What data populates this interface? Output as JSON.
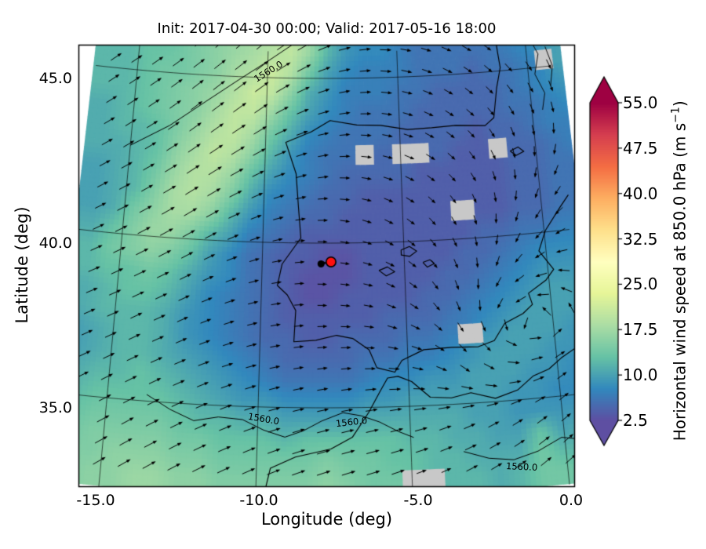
{
  "chart_data": {
    "type": "heatmap",
    "title": "Init: 2017-04-30 00:00; Valid: 2017-05-16 18:00",
    "xlabel": "Longitude (deg)",
    "ylabel": "Latitude (deg)",
    "x_ticks": [
      "-15.0",
      "-10.0",
      "-5.0",
      "0.0"
    ],
    "y_ticks": [
      "45.0",
      "40.0",
      "35.0"
    ],
    "xlim": [
      -16.4,
      1.0
    ],
    "ylim": [
      32.5,
      46.1
    ],
    "grid_lines": {
      "meridians": [
        -15,
        -10,
        -5,
        0
      ],
      "parallels": [
        35,
        40,
        45
      ]
    },
    "colorbar": {
      "label_prefix": "Horizontal wind speed at 850.0 hPa (m s",
      "label_sup": "−1",
      "label_suffix": ")",
      "tick_labels": [
        "2.5",
        "10.0",
        "17.5",
        "25.0",
        "32.5",
        "40.0",
        "47.5",
        "55.0"
      ],
      "tick_values": [
        2.5,
        10.0,
        17.5,
        25.0,
        32.5,
        40.0,
        47.5,
        55.0
      ],
      "vmin": 2.5,
      "vmax": 55.0,
      "cmap_colors": [
        "#5e4fa2",
        "#3288bd",
        "#66c2a5",
        "#abdda4",
        "#e6f598",
        "#ffffbf",
        "#fee08b",
        "#fdae61",
        "#f46d43",
        "#d53e4f",
        "#9e0142"
      ],
      "under_color": "#5e4fa2",
      "over_color": "#9e0142",
      "missing_color": "#c8c8c8"
    },
    "contour_label": "1560.0",
    "field": {
      "units": "m s-1",
      "lon0": -16.4,
      "dlon": 0.696,
      "lat0": 46.1,
      "dlat": -0.62,
      "values": [
        [
          12,
          12,
          13,
          13,
          14,
          15,
          16,
          17,
          18,
          19,
          20,
          17,
          12,
          9,
          8,
          8,
          7,
          6,
          6,
          6,
          6,
          6,
          7,
          8,
          9,
          10
        ],
        [
          12,
          12,
          13,
          14,
          14,
          15,
          16,
          18,
          19,
          21,
          19,
          14,
          10,
          8,
          7,
          7,
          7,
          6,
          6,
          6,
          5,
          6,
          6,
          7,
          null,
          10
        ],
        [
          12,
          12,
          13,
          14,
          15,
          16,
          17,
          19,
          21,
          20,
          16,
          11,
          9,
          7,
          7,
          7,
          6,
          6,
          5,
          5,
          5,
          5,
          6,
          7,
          8,
          9
        ],
        [
          11,
          12,
          13,
          14,
          15,
          16,
          18,
          20,
          20,
          17,
          13,
          10,
          8,
          7,
          6,
          6,
          6,
          5,
          5,
          5,
          5,
          5,
          6,
          6,
          7,
          8
        ],
        [
          11,
          12,
          12,
          13,
          15,
          17,
          19,
          20,
          18,
          14,
          11,
          8,
          7,
          6,
          6,
          6,
          5,
          5,
          5,
          5,
          4,
          5,
          5,
          6,
          7,
          7
        ],
        [
          11,
          11,
          12,
          13,
          16,
          18,
          20,
          19,
          16,
          12,
          9,
          7,
          6,
          6,
          null,
          5,
          null,
          null,
          5,
          4,
          4,
          null,
          5,
          5,
          6,
          7
        ],
        [
          10,
          11,
          12,
          14,
          17,
          19,
          19,
          17,
          13,
          10,
          8,
          7,
          6,
          5,
          5,
          5,
          5,
          4,
          4,
          4,
          4,
          4,
          5,
          5,
          6,
          6
        ],
        [
          10,
          11,
          12,
          15,
          18,
          19,
          18,
          15,
          11,
          8,
          7,
          6,
          5,
          5,
          4,
          4,
          4,
          4,
          4,
          4,
          4,
          4,
          5,
          5,
          6,
          6
        ],
        [
          10,
          11,
          14,
          16,
          18,
          18,
          16,
          12,
          9,
          7,
          6,
          5,
          5,
          4,
          4,
          4,
          4,
          4,
          4,
          null,
          4,
          4,
          5,
          5,
          6,
          6
        ],
        [
          11,
          13,
          15,
          17,
          17,
          15,
          12,
          10,
          7,
          6,
          5,
          4,
          4,
          4,
          4,
          4,
          4,
          4,
          4,
          4,
          5,
          5,
          6,
          6,
          7,
          7
        ],
        [
          12,
          14,
          15,
          16,
          15,
          13,
          10,
          8,
          6,
          5,
          4,
          4,
          3,
          3,
          4,
          4,
          4,
          4,
          4,
          5,
          5,
          6,
          7,
          8,
          8,
          8
        ],
        [
          12,
          13,
          13,
          14,
          13,
          11,
          9,
          8,
          6,
          5,
          4,
          3,
          3,
          3,
          4,
          4,
          4,
          4,
          5,
          5,
          6,
          7,
          8,
          9,
          9,
          9
        ],
        [
          11,
          12,
          13,
          13,
          12,
          10,
          8,
          7,
          6,
          5,
          4,
          3,
          3,
          4,
          4,
          4,
          4,
          5,
          5,
          6,
          7,
          8,
          9,
          10,
          10,
          9
        ],
        [
          11,
          12,
          12,
          12,
          11,
          9,
          8,
          7,
          6,
          5,
          4,
          4,
          4,
          4,
          4,
          5,
          5,
          5,
          6,
          7,
          8,
          9,
          10,
          10,
          10,
          9
        ],
        [
          10,
          11,
          12,
          12,
          11,
          9,
          8,
          7,
          6,
          5,
          5,
          4,
          4,
          5,
          5,
          5,
          6,
          6,
          7,
          null,
          9,
          10,
          10,
          10,
          9,
          9
        ],
        [
          10,
          11,
          12,
          12,
          11,
          10,
          9,
          8,
          7,
          6,
          5,
          5,
          5,
          5,
          6,
          6,
          7,
          7,
          8,
          9,
          10,
          10,
          10,
          9,
          9,
          8
        ],
        [
          11,
          12,
          12,
          13,
          12,
          11,
          10,
          9,
          8,
          7,
          6,
          6,
          6,
          6,
          7,
          8,
          8,
          9,
          9,
          10,
          10,
          10,
          9,
          9,
          8,
          8
        ],
        [
          12,
          13,
          13,
          13,
          13,
          12,
          11,
          10,
          9,
          9,
          8,
          8,
          8,
          8,
          9,
          9,
          10,
          10,
          10,
          10,
          10,
          9,
          9,
          8,
          8,
          8
        ],
        [
          13,
          14,
          14,
          14,
          14,
          13,
          12,
          12,
          11,
          11,
          10,
          10,
          10,
          10,
          11,
          11,
          11,
          11,
          11,
          10,
          10,
          9,
          9,
          9,
          9,
          9
        ],
        [
          14,
          15,
          15,
          15,
          15,
          14,
          14,
          13,
          13,
          13,
          12,
          13,
          13,
          13,
          13,
          13,
          12,
          12,
          11,
          11,
          10,
          10,
          13,
          10,
          11,
          11
        ],
        [
          15,
          15,
          16,
          16,
          16,
          15,
          15,
          14,
          14,
          14,
          14,
          14,
          15,
          14,
          14,
          13,
          13,
          12,
          12,
          11,
          11,
          11,
          14,
          12,
          12,
          13
        ],
        [
          15,
          16,
          16,
          17,
          17,
          16,
          16,
          15,
          15,
          15,
          15,
          15,
          16,
          15,
          14,
          14,
          null,
          null,
          12,
          12,
          11,
          12,
          14,
          14,
          13,
          14
        ]
      ]
    },
    "wind_angles": {
      "convention": "degrees, 0 = east, counterclockwise positive",
      "lon0": -16.4,
      "dlon": 1.9333,
      "lat0": 46.1,
      "dlat": -1.9429,
      "deg": [
        [
          35,
          35,
          38,
          40,
          30,
          10,
          -10,
          -25,
          -40,
          -60
        ],
        [
          32,
          34,
          38,
          36,
          22,
          5,
          -15,
          -35,
          -55,
          -75
        ],
        [
          28,
          30,
          34,
          28,
          15,
          -5,
          -25,
          -50,
          -80,
          -110
        ],
        [
          25,
          28,
          30,
          20,
          5,
          -15,
          -40,
          -70,
          -110,
          -150
        ],
        [
          22,
          25,
          25,
          15,
          2,
          -8,
          -35,
          -80,
          -150,
          160
        ],
        [
          25,
          25,
          22,
          15,
          8,
          2,
          -15,
          -45,
          10,
          60
        ],
        [
          28,
          28,
          25,
          20,
          15,
          12,
          15,
          25,
          35,
          45
        ],
        [
          30,
          30,
          28,
          25,
          20,
          18,
          22,
          30,
          40,
          45
        ]
      ]
    },
    "marker": {
      "lon": -7.58,
      "lat": 39.43,
      "color": "#ff1010"
    },
    "coastlines": [
      [
        [
          -1.15,
          46.1
        ],
        [
          -1.1,
          45.55
        ],
        [
          -1.05,
          45.1
        ],
        [
          -1.25,
          44.5
        ],
        [
          -1.45,
          43.6
        ],
        [
          -1.8,
          43.38
        ],
        [
          -2.9,
          43.45
        ],
        [
          -3.8,
          43.42
        ],
        [
          -4.7,
          43.4
        ],
        [
          -5.7,
          43.55
        ],
        [
          -6.6,
          43.58
        ],
        [
          -7.6,
          43.72
        ],
        [
          -8.3,
          43.38
        ],
        [
          -9.25,
          43.05
        ],
        [
          -8.85,
          42.1
        ],
        [
          -8.75,
          41.1
        ],
        [
          -8.65,
          40.15
        ],
        [
          -9.3,
          39.35
        ],
        [
          -9.45,
          38.7
        ],
        [
          -9.1,
          38.42
        ],
        [
          -8.8,
          37.95
        ],
        [
          -8.85,
          37.0
        ],
        [
          -8.1,
          37.05
        ],
        [
          -7.4,
          37.2
        ],
        [
          -6.85,
          37.1
        ],
        [
          -6.3,
          36.75
        ],
        [
          -6.05,
          36.2
        ],
        [
          -5.45,
          36.05
        ],
        [
          -5.2,
          36.4
        ],
        [
          -4.45,
          36.7
        ],
        [
          -3.5,
          36.73
        ],
        [
          -2.6,
          36.7
        ],
        [
          -2.05,
          36.85
        ],
        [
          -1.65,
          37.35
        ],
        [
          -1.0,
          37.6
        ],
        [
          -0.65,
          37.85
        ],
        [
          -0.75,
          38.2
        ],
        [
          -0.1,
          38.55
        ],
        [
          0.2,
          38.85
        ],
        [
          -0.25,
          39.45
        ],
        [
          0.05,
          40.05
        ],
        [
          0.65,
          40.7
        ],
        [
          1.0,
          41.05
        ]
      ],
      [
        [
          -9.7,
          32.5
        ],
        [
          -9.55,
          33.15
        ],
        [
          -8.75,
          33.5
        ],
        [
          -7.6,
          33.75
        ],
        [
          -6.9,
          34.1
        ],
        [
          -6.35,
          34.85
        ],
        [
          -5.95,
          35.5
        ],
        [
          -5.7,
          35.88
        ],
        [
          -5.35,
          35.92
        ],
        [
          -4.9,
          35.75
        ],
        [
          -4.3,
          35.25
        ],
        [
          -3.6,
          35.2
        ],
        [
          -2.95,
          35.32
        ],
        [
          -2.15,
          35.1
        ],
        [
          -1.4,
          35.3
        ],
        [
          -0.85,
          35.68
        ],
        [
          -0.3,
          35.85
        ],
        [
          0.15,
          36.15
        ],
        [
          0.65,
          36.4
        ],
        [
          1.0,
          36.5
        ]
      ],
      [
        [
          -5.1,
          39.75
        ],
        [
          -4.8,
          39.85
        ],
        [
          -4.55,
          39.7
        ],
        [
          -4.8,
          39.55
        ],
        [
          -5.1,
          39.6
        ],
        [
          -5.1,
          39.75
        ]
      ],
      [
        [
          -5.9,
          39.15
        ],
        [
          -5.6,
          39.25
        ],
        [
          -5.35,
          39.1
        ],
        [
          -5.65,
          38.98
        ],
        [
          -5.9,
          39.15
        ]
      ],
      [
        [
          -4.35,
          39.35
        ],
        [
          -4.1,
          39.42
        ],
        [
          -3.95,
          39.3
        ],
        [
          -4.2,
          39.2
        ],
        [
          -4.35,
          39.35
        ]
      ],
      [
        [
          -0.95,
          42.55
        ],
        [
          -0.65,
          42.65
        ],
        [
          -0.45,
          42.5
        ],
        [
          -0.75,
          42.4
        ],
        [
          -0.95,
          42.55
        ]
      ]
    ],
    "detail_lines": [
      [
        [
          0.15,
          45.95
        ],
        [
          0.45,
          45.4
        ],
        [
          0.25,
          44.8
        ],
        [
          0.55,
          44.2
        ],
        [
          0.4,
          43.7
        ]
      ],
      [
        [
          0.75,
          45.6
        ],
        [
          0.95,
          45.0
        ],
        [
          0.8,
          44.4
        ]
      ]
    ],
    "contour_lines": [
      [
        [
          -15.0,
          42.7
        ],
        [
          -13.6,
          43.4
        ],
        [
          -12.3,
          44.2
        ],
        [
          -11.1,
          44.9
        ],
        [
          -10.0,
          45.5
        ],
        [
          -9.0,
          46.05
        ]
      ],
      [
        [
          -13.7,
          35.2
        ],
        [
          -12.9,
          34.8
        ],
        [
          -12.1,
          34.5
        ],
        [
          -11.3,
          34.65
        ],
        [
          -10.5,
          34.6
        ],
        [
          -9.8,
          34.3
        ],
        [
          -9.1,
          34.1
        ],
        [
          -8.5,
          34.3
        ],
        [
          -7.9,
          34.6
        ],
        [
          -7.2,
          34.85
        ],
        [
          -6.6,
          34.75
        ],
        [
          -6.0,
          34.55
        ],
        [
          -5.4,
          34.25
        ],
        [
          -4.9,
          34.05
        ]
      ],
      [
        [
          -3.3,
          33.55
        ],
        [
          -2.5,
          33.3
        ],
        [
          -1.7,
          33.2
        ],
        [
          -0.9,
          33.4
        ],
        [
          -0.1,
          33.75
        ],
        [
          0.7,
          33.6
        ]
      ]
    ]
  }
}
